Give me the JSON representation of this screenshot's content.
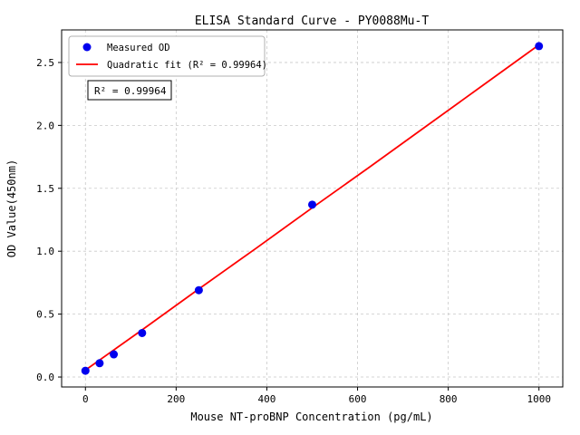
{
  "chart_data": {
    "type": "scatter",
    "title": "ELISA Standard Curve - PY0088Mu-T",
    "xlabel": "Mouse NT-proBNP Concentration (pg/mL)",
    "ylabel": "OD Value(450nm)",
    "xlim": [
      -52.5,
      1052.5
    ],
    "ylim": [
      -0.079,
      2.759
    ],
    "x_tick_values": [
      0,
      200,
      400,
      600,
      800,
      1000
    ],
    "x_tick_labels": [
      "0",
      "200",
      "400",
      "600",
      "800",
      "1000"
    ],
    "y_tick_values": [
      0.0,
      0.5,
      1.0,
      1.5,
      2.0,
      2.5
    ],
    "y_tick_labels": [
      "0.0",
      "0.5",
      "1.0",
      "1.5",
      "2.0",
      "2.5"
    ],
    "grid": true,
    "legend_position": "upper-left",
    "series": [
      {
        "name": "Measured OD",
        "kind": "scatter",
        "color": "#0000ee",
        "points": [
          [
            0,
            0.05
          ],
          [
            31.25,
            0.11
          ],
          [
            62.5,
            0.18
          ],
          [
            125,
            0.35
          ],
          [
            250,
            0.69
          ],
          [
            500,
            1.37
          ],
          [
            1000,
            2.63
          ]
        ]
      },
      {
        "name": "Quadratic fit (R² = 0.99964)",
        "kind": "line",
        "color": "#ff0000",
        "points": [
          [
            0,
            0.055
          ],
          [
            125,
            0.375
          ],
          [
            250,
            0.7
          ],
          [
            375,
            1.02
          ],
          [
            500,
            1.345
          ],
          [
            625,
            1.665
          ],
          [
            750,
            1.99
          ],
          [
            875,
            2.315
          ],
          [
            1000,
            2.64
          ]
        ]
      }
    ],
    "annotation": "R² = 0.99964",
    "r_squared": 0.99964,
    "colors": {
      "grid": "#c9c9c9",
      "frame": "#000000",
      "marker": "#0000ee",
      "fit_line": "#ff0000",
      "legend_border": "#b0b0b0",
      "annotation_border": "#000000",
      "background": "#ffffff"
    }
  }
}
